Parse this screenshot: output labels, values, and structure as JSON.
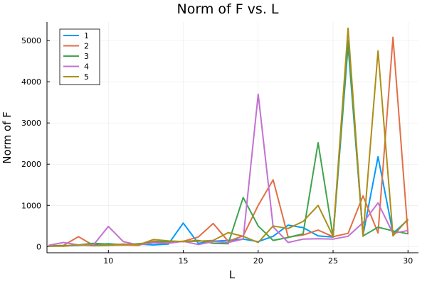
{
  "chart_data": {
    "type": "line",
    "title": "Norm of F vs. L",
    "xlabel": "L",
    "ylabel": "Norm of F",
    "xlim": [
      5.9,
      30.7
    ],
    "ylim": [
      -150,
      5450
    ],
    "xticks": [
      10,
      15,
      20,
      25,
      30
    ],
    "yticks": [
      0,
      1000,
      2000,
      3000,
      4000,
      5000
    ],
    "grid": true,
    "legend_position": "top-left",
    "x": [
      6,
      7,
      8,
      9,
      10,
      11,
      12,
      13,
      14,
      15,
      16,
      17,
      18,
      19,
      20,
      21,
      22,
      23,
      24,
      25,
      26,
      27,
      28,
      29,
      30
    ],
    "series": [
      {
        "name": "1",
        "color": "#009AFA",
        "values": [
          10,
          15,
          30,
          50,
          70,
          40,
          60,
          40,
          60,
          570,
          80,
          130,
          150,
          180,
          120,
          250,
          520,
          460,
          260,
          230,
          4880,
          280,
          2180,
          320,
          650
        ]
      },
      {
        "name": "2",
        "color": "#E26F46",
        "values": [
          20,
          30,
          240,
          30,
          30,
          40,
          30,
          130,
          110,
          130,
          230,
          560,
          130,
          260,
          1000,
          1620,
          230,
          280,
          400,
          240,
          320,
          1230,
          330,
          5080,
          300
        ]
      },
      {
        "name": "3",
        "color": "#3EA44E",
        "values": [
          20,
          20,
          40,
          80,
          60,
          50,
          70,
          100,
          120,
          120,
          150,
          80,
          70,
          1190,
          500,
          150,
          220,
          310,
          2520,
          240,
          5000,
          260,
          470,
          380,
          310
        ]
      },
      {
        "name": "4",
        "color": "#C371D2",
        "values": [
          30,
          100,
          40,
          40,
          490,
          120,
          40,
          90,
          80,
          130,
          50,
          120,
          100,
          180,
          3700,
          480,
          100,
          180,
          190,
          180,
          250,
          580,
          1060,
          320,
          390
        ]
      },
      {
        "name": "5",
        "color": "#AC8E18",
        "values": [
          10,
          10,
          40,
          20,
          30,
          60,
          40,
          170,
          140,
          120,
          130,
          150,
          340,
          250,
          100,
          500,
          440,
          610,
          1000,
          250,
          5300,
          250,
          4750,
          260,
          670
        ]
      }
    ]
  }
}
